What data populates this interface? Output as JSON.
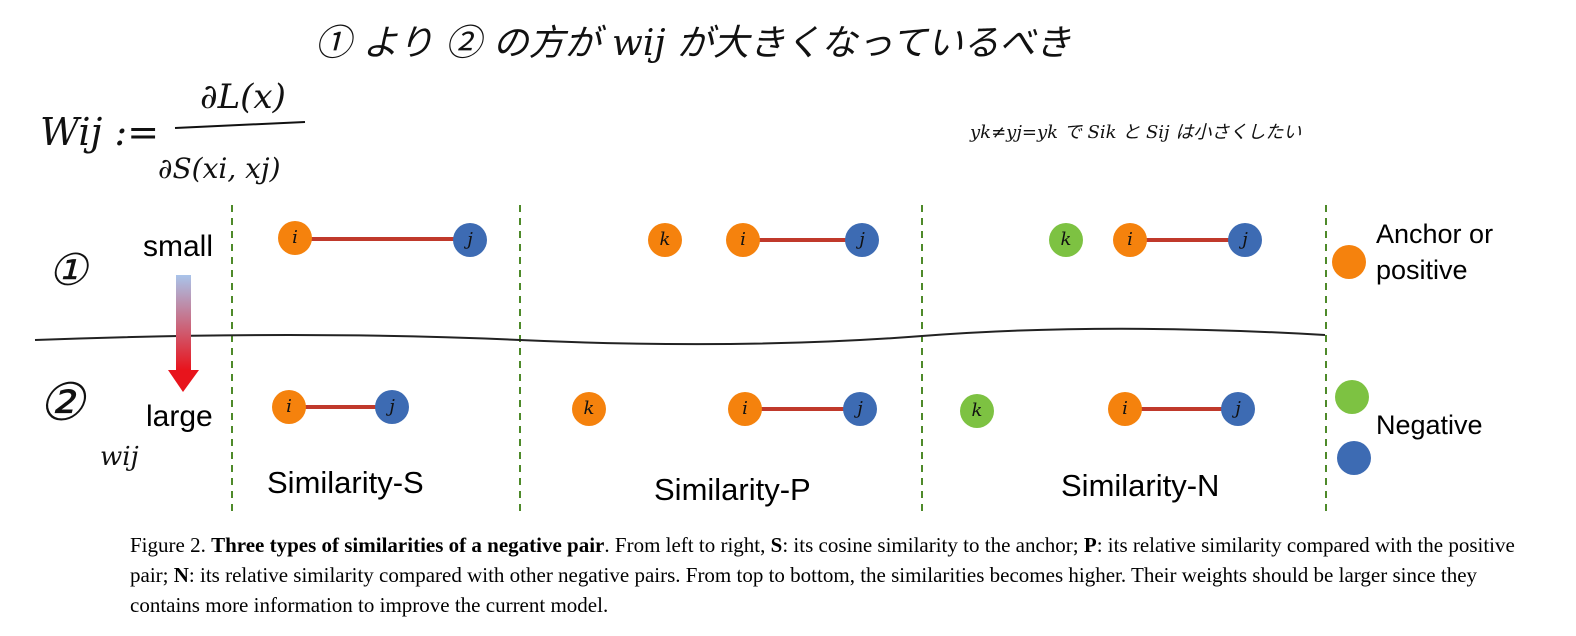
{
  "handwriting": {
    "top_note": "① より ② の方が wij が大きくなっているべき",
    "formula_lhs": "Wij :=",
    "formula_num": "∂L(x)",
    "formula_den": "∂S(xi, xj)",
    "side_note": "yk≠yj=yk で Sik と Sij は小さくしたい",
    "row1": "①",
    "row2": "②",
    "wij": "wij",
    "node_labels": [
      "i",
      "j",
      "k"
    ]
  },
  "figure": {
    "small": "small",
    "large": "large",
    "panels": [
      "Similarity-S",
      "Similarity-P",
      "Similarity-N"
    ],
    "legend": {
      "anchor_line1": "Anchor or",
      "anchor_line2": "positive",
      "negative": "Negative"
    }
  },
  "caption": [
    "Figure 2. ",
    "Three types of similarities of a negative pair",
    ". From left to right, ",
    "S",
    ": its cosine similarity to the anchor; ",
    "P",
    ": its relative similarity compared with the positive pair; ",
    "N",
    ": its relative similarity compared with other negative pairs. From top to bottom, the similarities becomes higher. Their weights should be larger since they contains more information to improve the current model."
  ]
}
